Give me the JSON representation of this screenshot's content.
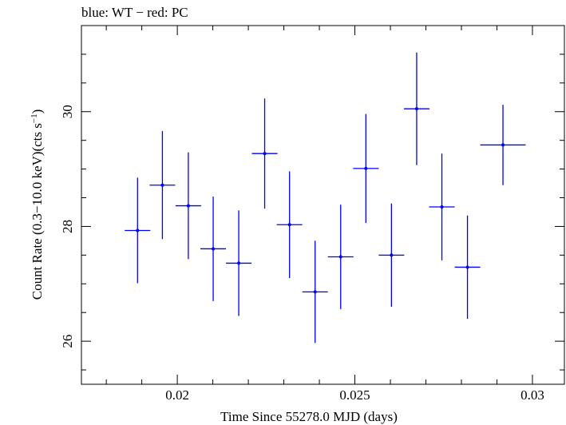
{
  "chart_data": {
    "type": "scatter",
    "title": "blue: WT − red: PC",
    "xlabel": "Time Since 55278.0 MJD (days)",
    "ylabel_main": "Count Rate (0.3−10.0 keV)(cts s",
    "ylabel_sup": "−1",
    "ylabel_close": ")",
    "xlim": [
      0.0173,
      0.0309
    ],
    "ylim": [
      25.25,
      31.5
    ],
    "xticks": [
      0.02,
      0.025,
      0.03
    ],
    "xtick_labels": [
      "0.02",
      "0.025",
      "0.03"
    ],
    "yticks": [
      26,
      28,
      30
    ],
    "ytick_labels": [
      "26",
      "28",
      "30"
    ],
    "grid": false,
    "series": [
      {
        "color": "#0000ff",
        "points": [
          {
            "x": 0.01888,
            "xerr": 0.00036,
            "y": 27.93,
            "yerr": 0.92
          },
          {
            "x": 0.01958,
            "xerr": 0.00036,
            "y": 28.72,
            "yerr": 0.94
          },
          {
            "x": 0.02031,
            "xerr": 0.00036,
            "y": 28.36,
            "yerr": 0.93
          },
          {
            "x": 0.02101,
            "xerr": 0.00036,
            "y": 27.61,
            "yerr": 0.91
          },
          {
            "x": 0.02173,
            "xerr": 0.00036,
            "y": 27.36,
            "yerr": 0.92
          },
          {
            "x": 0.02246,
            "xerr": 0.00036,
            "y": 29.27,
            "yerr": 0.96
          },
          {
            "x": 0.02316,
            "xerr": 0.00036,
            "y": 28.03,
            "yerr": 0.93
          },
          {
            "x": 0.02388,
            "xerr": 0.00036,
            "y": 26.86,
            "yerr": 0.89
          },
          {
            "x": 0.0246,
            "xerr": 0.00036,
            "y": 27.47,
            "yerr": 0.91
          },
          {
            "x": 0.02531,
            "xerr": 0.00036,
            "y": 29.01,
            "yerr": 0.95
          },
          {
            "x": 0.02603,
            "xerr": 0.00036,
            "y": 27.5,
            "yerr": 0.9
          },
          {
            "x": 0.02674,
            "xerr": 0.00036,
            "y": 30.05,
            "yerr": 0.98
          },
          {
            "x": 0.02745,
            "xerr": 0.00036,
            "y": 28.34,
            "yerr": 0.93
          },
          {
            "x": 0.02817,
            "xerr": 0.00036,
            "y": 27.29,
            "yerr": 0.9
          },
          {
            "x": 0.02917,
            "xerr": 0.00064,
            "y": 29.42,
            "yerr": 0.7
          }
        ]
      }
    ]
  }
}
